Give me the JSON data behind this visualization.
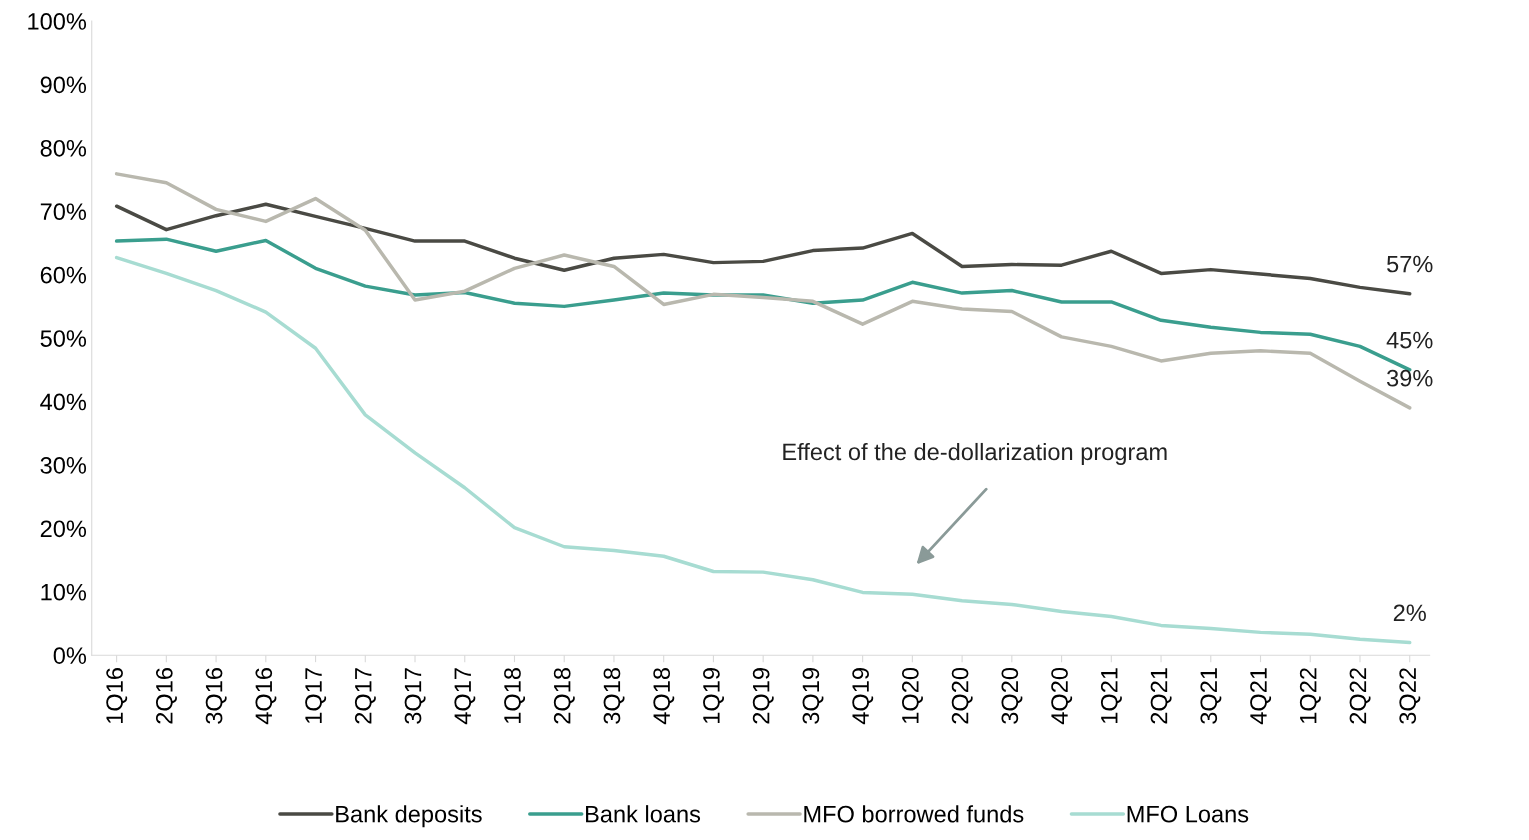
{
  "chart_data": {
    "type": "line",
    "categories": [
      "1Q16",
      "2Q16",
      "3Q16",
      "4Q16",
      "1Q17",
      "2Q17",
      "3Q17",
      "4Q17",
      "1Q18",
      "2Q18",
      "3Q18",
      "4Q18",
      "1Q19",
      "2Q19",
      "3Q19",
      "4Q19",
      "1Q20",
      "2Q20",
      "3Q20",
      "4Q20",
      "1Q21",
      "2Q21",
      "3Q21",
      "4Q21",
      "1Q22",
      "2Q22",
      "3Q22"
    ],
    "series": [
      {
        "name": "Bank deposits",
        "color": "#4a4a44",
        "values": [
          70.8,
          67.1,
          69.3,
          71.1,
          69.2,
          67.3,
          65.3,
          65.3,
          62.6,
          60.7,
          62.6,
          63.2,
          61.9,
          62.1,
          63.8,
          64.2,
          66.5,
          61.3,
          61.6,
          61.5,
          63.7,
          60.2,
          60.8,
          60.1,
          59.4,
          58.0,
          57
        ],
        "value_labels": [
          null,
          null,
          null,
          null,
          null,
          null,
          null,
          null,
          null,
          null,
          null,
          null,
          null,
          null,
          null,
          null,
          null,
          null,
          null,
          null,
          null,
          null,
          null,
          null,
          null,
          null,
          "57%"
        ]
      },
      {
        "name": "Bank loans",
        "color": "#3a9e8e",
        "values": [
          65.3,
          65.6,
          63.7,
          65.4,
          61.0,
          58.2,
          56.8,
          57.2,
          55.5,
          55.0,
          56.0,
          57.1,
          56.8,
          56.8,
          55.5,
          56.0,
          58.8,
          57.1,
          57.5,
          55.7,
          55.7,
          52.8,
          51.7,
          50.9,
          50.6,
          48.7,
          45
        ],
        "value_labels": [
          null,
          null,
          null,
          null,
          null,
          null,
          null,
          null,
          null,
          null,
          null,
          null,
          null,
          null,
          null,
          null,
          null,
          null,
          null,
          null,
          null,
          null,
          null,
          null,
          null,
          null,
          "45%"
        ]
      },
      {
        "name": "MFO borrowed funds",
        "color": "#b9b8ae",
        "values": [
          75.9,
          74.5,
          70.3,
          68.4,
          72.0,
          67.0,
          56.0,
          57.4,
          61.0,
          63.1,
          61.3,
          55.3,
          56.9,
          56.4,
          55.8,
          52.2,
          55.8,
          54.6,
          54.2,
          50.2,
          48.7,
          46.4,
          47.6,
          48.0,
          47.6,
          43.2,
          39
        ],
        "value_labels": [
          null,
          null,
          null,
          null,
          null,
          null,
          null,
          null,
          null,
          null,
          null,
          null,
          null,
          null,
          null,
          null,
          null,
          null,
          null,
          null,
          null,
          null,
          null,
          null,
          null,
          null,
          "39%"
        ]
      },
      {
        "name": "MFO Loans",
        "color": "#a7dcd2",
        "values": [
          62.7,
          60.2,
          57.5,
          54.1,
          48.4,
          37.9,
          31.9,
          26.4,
          20.1,
          17.1,
          16.5,
          15.6,
          13.2,
          13.1,
          11.9,
          9.9,
          9.6,
          8.6,
          8.0,
          6.9,
          6.1,
          4.7,
          4.2,
          3.6,
          3.3,
          2.5,
          2
        ],
        "value_labels": [
          null,
          null,
          null,
          null,
          null,
          null,
          null,
          null,
          null,
          null,
          null,
          null,
          null,
          null,
          null,
          null,
          null,
          null,
          null,
          null,
          null,
          null,
          null,
          null,
          null,
          null,
          "2%"
        ]
      }
    ],
    "ylim": [
      0,
      100
    ],
    "yticks": [
      {
        "value": 0,
        "label": "0%"
      },
      {
        "value": 10,
        "label": "10%"
      },
      {
        "value": 20,
        "label": "20%"
      },
      {
        "value": 30,
        "label": "30%"
      },
      {
        "value": 40,
        "label": "40%"
      },
      {
        "value": 50,
        "label": "50%"
      },
      {
        "value": 60,
        "label": "60%"
      },
      {
        "value": 70,
        "label": "70%"
      },
      {
        "value": 80,
        "label": "80%"
      },
      {
        "value": 90,
        "label": "90%"
      },
      {
        "value": 100,
        "label": "100%"
      }
    ],
    "annotations": [
      "Effect of the de-dollarization program"
    ],
    "grid": false,
    "legend": "bottom",
    "marker": "none",
    "line_style": "solid"
  }
}
